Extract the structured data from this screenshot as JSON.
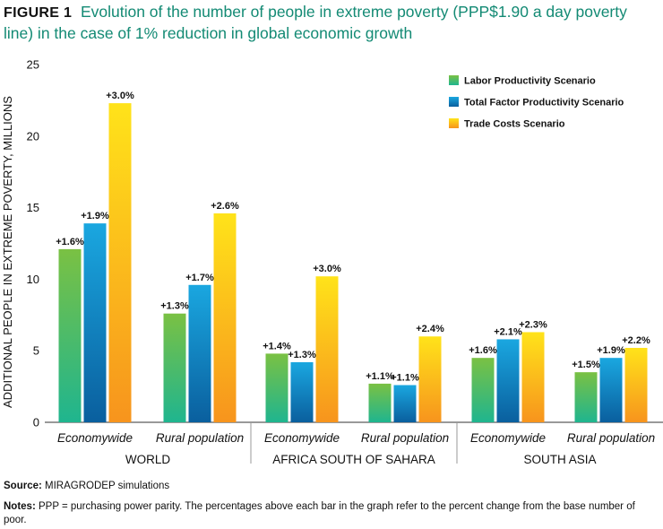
{
  "figure_label": "FIGURE 1",
  "title": "Evolution of the number of people in extreme poverty (PPP$1.90 a day poverty line) in the case of 1% reduction in global economic growth",
  "source_label": "Source:",
  "source_text": "MIRAGRODEP simulations",
  "notes_label": "Notes:",
  "notes_text": "PPP = purchasing power parity. The percentages above each bar in the graph refer to the percent change from the base number of poor.",
  "colors": {
    "labor": [
      "#7ac143",
      "#1fb58f"
    ],
    "tfp": [
      "#1aa7e0",
      "#0a5f9e"
    ],
    "trade": [
      "#ffe31a",
      "#f7941d"
    ]
  },
  "chart_data": {
    "type": "bar",
    "ylabel": "ADDITIONAL PEOPLE IN EXTREME POVERTY, MILLIONS",
    "ylim": [
      0,
      25
    ],
    "yticks": [
      "0",
      "5",
      "10",
      "15",
      "20",
      "25"
    ],
    "groups": [
      "WORLD",
      "AFRICA SOUTH OF SAHARA",
      "SOUTH ASIA"
    ],
    "categories": [
      "Economywide",
      "Rural population",
      "Economywide",
      "Rural population",
      "Economywide",
      "Rural population"
    ],
    "legend_position": "top-right",
    "series": [
      {
        "name": "Labor Productivity Scenario",
        "values": [
          12.1,
          7.6,
          4.8,
          2.7,
          4.5,
          3.5
        ],
        "labels": [
          "+1.6%",
          "+1.3%",
          "+1.4%",
          "+1.1%",
          "+1.6%",
          "+1.5%"
        ]
      },
      {
        "name": "Total Factor Productivity Scenario",
        "values": [
          13.9,
          9.6,
          4.2,
          2.6,
          5.8,
          4.5
        ],
        "labels": [
          "+1.9%",
          "+1.7%",
          "+1.3%",
          "+1.1%",
          "+2.1%",
          "+1.9%"
        ]
      },
      {
        "name": "Trade Costs Scenario",
        "values": [
          22.3,
          14.6,
          10.2,
          6.0,
          6.3,
          5.2
        ],
        "labels": [
          "+3.0%",
          "+2.6%",
          "+3.0%",
          "+2.4%",
          "+2.3%",
          "+2.2%"
        ]
      }
    ]
  }
}
